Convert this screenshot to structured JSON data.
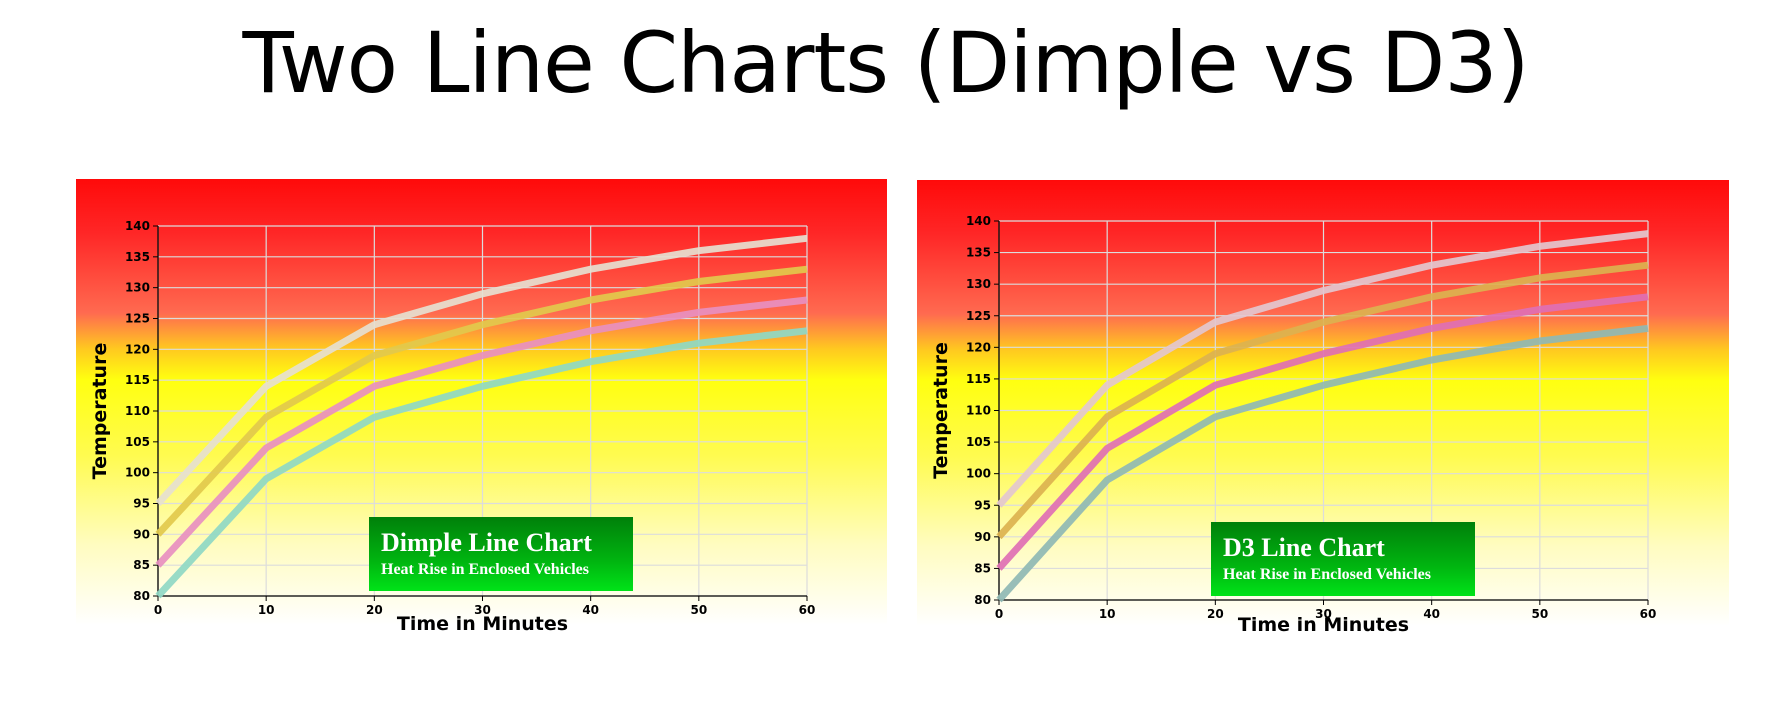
{
  "slide": {
    "title": "Two Line Charts (Dimple vs D3)"
  },
  "chart_data": [
    {
      "type": "line",
      "caption_title": "Dimple Line Chart",
      "caption_subtitle": "Heat Rise in Enclosed Vehicles",
      "xlabel": "Time in Minutes",
      "ylabel": "Temperature",
      "x": [
        0,
        10,
        20,
        30,
        40,
        50,
        60
      ],
      "xlim": [
        0,
        60
      ],
      "ylim": [
        80,
        140
      ],
      "xticks": [
        "0",
        "10",
        "20",
        "30",
        "40",
        "50",
        "60"
      ],
      "yticks": [
        "80",
        "85",
        "90",
        "95",
        "100",
        "105",
        "110",
        "115",
        "120",
        "125",
        "130",
        "135",
        "140"
      ],
      "grid": true,
      "series": [
        {
          "values": [
            95,
            114,
            124,
            129,
            133,
            136,
            138
          ],
          "color": "#e6e0d0"
        },
        {
          "values": [
            90,
            109,
            119,
            124,
            128,
            131,
            133
          ],
          "color": "#e2c94c"
        },
        {
          "values": [
            85,
            104,
            114,
            119,
            123,
            126,
            128
          ],
          "color": "#e88fc0"
        },
        {
          "values": [
            80,
            99,
            109,
            114,
            118,
            121,
            123
          ],
          "color": "#8fd8c4"
        }
      ]
    },
    {
      "type": "line",
      "caption_title": "D3 Line Chart",
      "caption_subtitle": "Heat Rise in Enclosed Vehicles",
      "xlabel": "Time in Minutes",
      "ylabel": "Temperature",
      "x": [
        0,
        10,
        20,
        30,
        40,
        50,
        60
      ],
      "xlim": [
        0,
        60
      ],
      "ylim": [
        80,
        140
      ],
      "xticks": [
        "0",
        "10",
        "20",
        "30",
        "40",
        "50",
        "60"
      ],
      "yticks": [
        "80",
        "85",
        "90",
        "95",
        "100",
        "105",
        "110",
        "115",
        "120",
        "125",
        "130",
        "135",
        "140"
      ],
      "grid": true,
      "series": [
        {
          "values": [
            95,
            114,
            124,
            129,
            133,
            136,
            138
          ],
          "color": "#e3c7cf"
        },
        {
          "values": [
            90,
            109,
            119,
            124,
            128,
            131,
            133
          ],
          "color": "#dcb24f"
        },
        {
          "values": [
            85,
            104,
            114,
            119,
            123,
            126,
            128
          ],
          "color": "#e06fb4"
        },
        {
          "values": [
            80,
            99,
            109,
            114,
            118,
            121,
            123
          ],
          "color": "#8fb8b4"
        }
      ]
    }
  ]
}
